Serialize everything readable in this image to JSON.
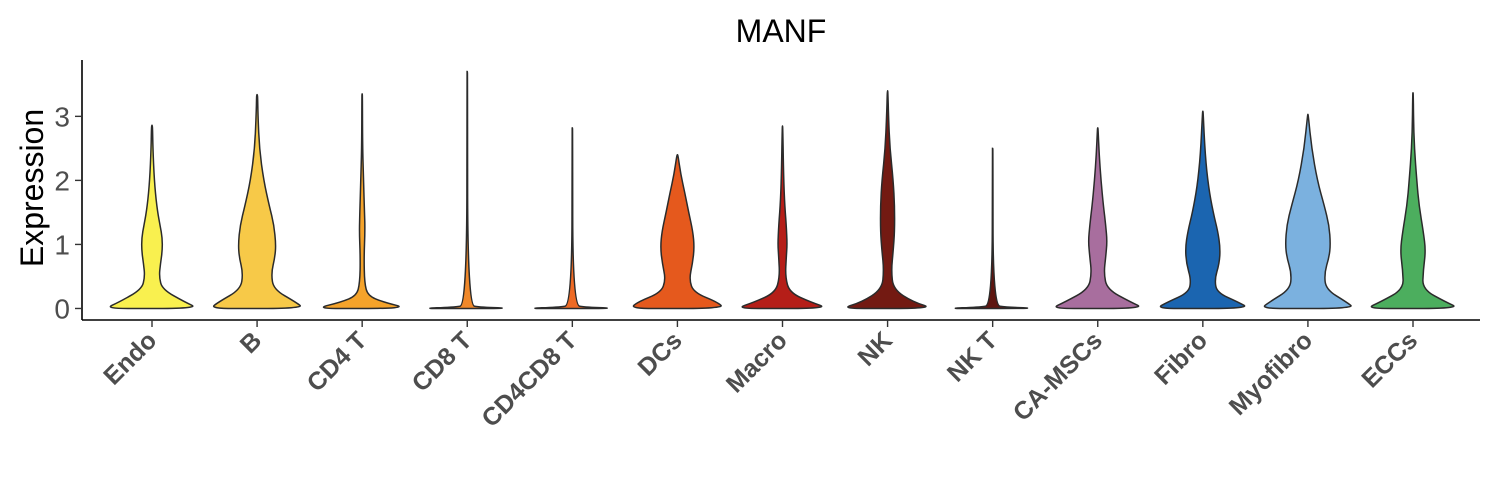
{
  "chart_data": {
    "type": "violin",
    "title": "MANF",
    "xlabel": "",
    "ylabel": "Expression",
    "ylim": [
      -0.18,
      3.88
    ],
    "yticks": [
      0,
      1,
      2,
      3
    ],
    "grid": false,
    "legend": "none",
    "categories": [
      "Endo",
      "B",
      "CD4 T",
      "CD8 T",
      "CD4CD8 T",
      "DCs",
      "Macro",
      "NK",
      "NK T",
      "CA-MSCs",
      "Fibro",
      "Myofibro",
      "ECCs"
    ],
    "series": [
      {
        "category": "Endo",
        "color": "#F9F04F",
        "max": 2.86,
        "density": [
          [
            0,
            1.0
          ],
          [
            0.1,
            0.7
          ],
          [
            0.3,
            0.22
          ],
          [
            0.5,
            0.15
          ],
          [
            0.7,
            0.18
          ],
          [
            0.9,
            0.22
          ],
          [
            1.1,
            0.22
          ],
          [
            1.3,
            0.17
          ],
          [
            1.6,
            0.1
          ],
          [
            2.0,
            0.05
          ],
          [
            2.5,
            0.02
          ],
          [
            2.86,
            0.01
          ]
        ]
      },
      {
        "category": "B",
        "color": "#F7C948",
        "max": 3.34,
        "density": [
          [
            0,
            1.0
          ],
          [
            0.1,
            0.82
          ],
          [
            0.3,
            0.35
          ],
          [
            0.55,
            0.3
          ],
          [
            0.8,
            0.38
          ],
          [
            1.0,
            0.4
          ],
          [
            1.3,
            0.36
          ],
          [
            1.6,
            0.26
          ],
          [
            2.0,
            0.14
          ],
          [
            2.5,
            0.05
          ],
          [
            3.0,
            0.02
          ],
          [
            3.34,
            0.01
          ]
        ]
      },
      {
        "category": "CD4 T",
        "color": "#F5A32A",
        "max": 3.35,
        "density": [
          [
            0,
            1.0
          ],
          [
            0.1,
            0.45
          ],
          [
            0.2,
            0.12
          ],
          [
            0.4,
            0.05
          ],
          [
            0.8,
            0.04
          ],
          [
            1.2,
            0.06
          ],
          [
            1.5,
            0.05
          ],
          [
            2.0,
            0.03
          ],
          [
            2.5,
            0.01
          ],
          [
            3.35,
            0.005
          ]
        ]
      },
      {
        "category": "CD8 T",
        "color": "#F0882A",
        "max": 3.7,
        "density": [
          [
            0,
            1.0
          ],
          [
            0.02,
            0.3
          ],
          [
            0.05,
            0.01
          ],
          [
            3.7,
            0.005
          ]
        ]
      },
      {
        "category": "CD4CD8 T",
        "color": "#EE6A24",
        "max": 2.82,
        "density": [
          [
            0,
            1.0
          ],
          [
            0.02,
            0.3
          ],
          [
            0.05,
            0.01
          ],
          [
            2.82,
            0.005
          ]
        ]
      },
      {
        "category": "DCs",
        "color": "#E5591D",
        "max": 2.4,
        "density": [
          [
            0,
            1.0
          ],
          [
            0.1,
            0.85
          ],
          [
            0.25,
            0.35
          ],
          [
            0.45,
            0.25
          ],
          [
            0.7,
            0.32
          ],
          [
            0.95,
            0.36
          ],
          [
            1.2,
            0.33
          ],
          [
            1.5,
            0.24
          ],
          [
            1.8,
            0.16
          ],
          [
            2.1,
            0.07
          ],
          [
            2.4,
            0.01
          ]
        ]
      },
      {
        "category": "Macro",
        "color": "#B51E18",
        "max": 2.85,
        "density": [
          [
            0,
            1.0
          ],
          [
            0.1,
            0.6
          ],
          [
            0.25,
            0.15
          ],
          [
            0.5,
            0.06
          ],
          [
            0.8,
            0.08
          ],
          [
            1.0,
            0.1
          ],
          [
            1.3,
            0.08
          ],
          [
            1.7,
            0.04
          ],
          [
            2.2,
            0.02
          ],
          [
            2.85,
            0.005
          ]
        ]
      },
      {
        "category": "NK",
        "color": "#731A12",
        "max": 3.4,
        "density": [
          [
            0,
            1.0
          ],
          [
            0.1,
            0.55
          ],
          [
            0.3,
            0.12
          ],
          [
            0.6,
            0.08
          ],
          [
            0.9,
            0.12
          ],
          [
            1.2,
            0.15
          ],
          [
            1.6,
            0.15
          ],
          [
            2.0,
            0.12
          ],
          [
            2.5,
            0.05
          ],
          [
            3.0,
            0.02
          ],
          [
            3.4,
            0.005
          ]
        ]
      },
      {
        "category": "NK T",
        "color": "#5E1510",
        "max": 2.5,
        "density": [
          [
            0,
            1.0
          ],
          [
            0.02,
            0.3
          ],
          [
            0.05,
            0.01
          ],
          [
            2.5,
            0.005
          ]
        ]
      },
      {
        "category": "CA-MSCs",
        "color": "#A86E9E",
        "max": 2.82,
        "density": [
          [
            0,
            1.0
          ],
          [
            0.1,
            0.7
          ],
          [
            0.3,
            0.2
          ],
          [
            0.55,
            0.13
          ],
          [
            0.8,
            0.17
          ],
          [
            1.05,
            0.2
          ],
          [
            1.3,
            0.17
          ],
          [
            1.6,
            0.12
          ],
          [
            2.0,
            0.07
          ],
          [
            2.4,
            0.03
          ],
          [
            2.82,
            0.005
          ]
        ]
      },
      {
        "category": "Fibro",
        "color": "#1B65B0",
        "max": 3.08,
        "density": [
          [
            0,
            1.0
          ],
          [
            0.1,
            0.75
          ],
          [
            0.25,
            0.3
          ],
          [
            0.45,
            0.25
          ],
          [
            0.7,
            0.35
          ],
          [
            0.95,
            0.37
          ],
          [
            1.2,
            0.32
          ],
          [
            1.5,
            0.22
          ],
          [
            1.9,
            0.12
          ],
          [
            2.4,
            0.05
          ],
          [
            3.08,
            0.005
          ]
        ]
      },
      {
        "category": "Myofibro",
        "color": "#7BB1DF",
        "max": 3.03,
        "density": [
          [
            0,
            1.0
          ],
          [
            0.1,
            0.82
          ],
          [
            0.3,
            0.38
          ],
          [
            0.55,
            0.35
          ],
          [
            0.8,
            0.45
          ],
          [
            1.0,
            0.48
          ],
          [
            1.3,
            0.45
          ],
          [
            1.6,
            0.35
          ],
          [
            2.0,
            0.2
          ],
          [
            2.5,
            0.08
          ],
          [
            3.03,
            0.005
          ]
        ]
      },
      {
        "category": "ECCs",
        "color": "#4CAE5E",
        "max": 3.37,
        "density": [
          [
            0,
            1.0
          ],
          [
            0.1,
            0.7
          ],
          [
            0.3,
            0.2
          ],
          [
            0.6,
            0.22
          ],
          [
            0.9,
            0.27
          ],
          [
            1.2,
            0.22
          ],
          [
            1.6,
            0.13
          ],
          [
            2.0,
            0.08
          ],
          [
            2.5,
            0.03
          ],
          [
            3.0,
            0.01
          ],
          [
            3.37,
            0.005
          ]
        ]
      }
    ]
  }
}
